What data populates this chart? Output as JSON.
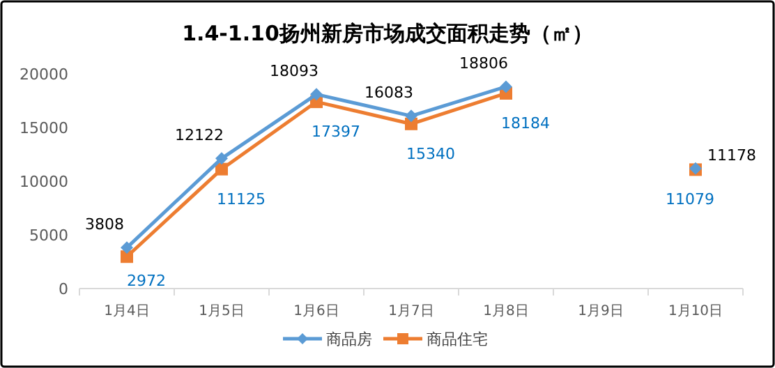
{
  "chart_data": {
    "type": "line",
    "title": "1.4-1.10扬州新房市场成交面积走势（㎡）",
    "categories": [
      "1月4日",
      "1月5日",
      "1月6日",
      "1月7日",
      "1月8日",
      "1月9日",
      "1月10日"
    ],
    "series": [
      {
        "name": "商品房",
        "color": "#5b9bd5",
        "marker": "diamond",
        "values": [
          3808,
          12122,
          18093,
          16083,
          18806,
          null,
          11178
        ]
      },
      {
        "name": "商品住宅",
        "color": "#ed7d31",
        "marker": "square",
        "values": [
          2972,
          11125,
          17397,
          15340,
          18184,
          null,
          11079
        ]
      }
    ],
    "ylim": [
      0,
      20000
    ],
    "yticks": [
      0,
      5000,
      10000,
      15000,
      20000
    ],
    "data_labels": true,
    "grid": false,
    "legend": "bottom"
  }
}
